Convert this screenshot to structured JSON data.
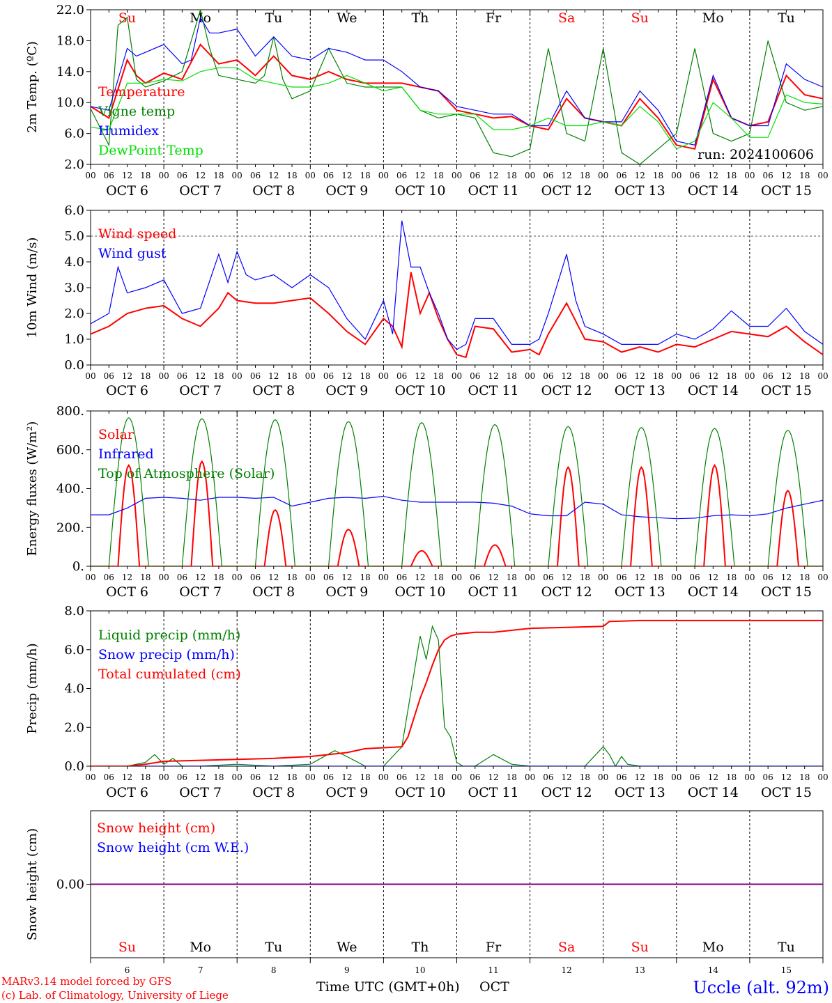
{
  "run_label": "run: 2024100606",
  "footer": {
    "model": "MARv3.14 model forced by GFS",
    "credit": "(c) Lab. of Climatology, University of Liege",
    "axis_title": "Time UTC (GMT+0h)",
    "month": "OCT",
    "station": "Uccle (alt. 92m)"
  },
  "days": [
    {
      "dow": "Su",
      "date": "OCT  6",
      "num": "6",
      "weekend": true
    },
    {
      "dow": "Mo",
      "date": "OCT  7",
      "num": "7",
      "weekend": false
    },
    {
      "dow": "Tu",
      "date": "OCT  8",
      "num": "8",
      "weekend": false
    },
    {
      "dow": "We",
      "date": "OCT  9",
      "num": "9",
      "weekend": false
    },
    {
      "dow": "Th",
      "date": "OCT 10",
      "num": "10",
      "weekend": false
    },
    {
      "dow": "Fr",
      "date": "OCT 11",
      "num": "11",
      "weekend": false
    },
    {
      "dow": "Sa",
      "date": "OCT 12",
      "num": "12",
      "weekend": true
    },
    {
      "dow": "Su",
      "date": "OCT 13",
      "num": "13",
      "weekend": true
    },
    {
      "dow": "Mo",
      "date": "OCT 14",
      "num": "14",
      "weekend": false
    },
    {
      "dow": "Tu",
      "date": "OCT 15",
      "num": "15",
      "weekend": false
    }
  ],
  "hour_ticks": [
    "00",
    "06",
    "12",
    "18"
  ],
  "colors": {
    "red": "#ff0000",
    "green": "#008000",
    "blue": "#0000ff",
    "lightgreen": "#00e000",
    "purple": "#800080",
    "weekend": "#ff0000",
    "weekday": "#000000"
  },
  "chart_data": [
    {
      "type": "line",
      "ylabel": "2m Temp. (ºC)",
      "ylim": [
        2,
        22
      ],
      "yticks": [
        "2.0",
        "6.0",
        "10.0",
        "14.0",
        "18.0",
        "22.0"
      ],
      "x_unit": "hours since Oct 6 00 UTC",
      "series": [
        {
          "name": "Temperature",
          "color": "red",
          "x": [
            0,
            6,
            12,
            15,
            18,
            24,
            30,
            36,
            42,
            48,
            54,
            60,
            66,
            72,
            78,
            84,
            90,
            96,
            102,
            108,
            114,
            120,
            126,
            132,
            138,
            144,
            150,
            156,
            162,
            168,
            174,
            180,
            186,
            192,
            198,
            204,
            210,
            216,
            222,
            228,
            234,
            240
          ],
          "y": [
            9.5,
            8.0,
            15.5,
            13.5,
            12.5,
            13.8,
            13.0,
            17.5,
            15.0,
            15.5,
            13.5,
            16.0,
            13.5,
            13.0,
            14.0,
            13.0,
            12.5,
            12.5,
            12.5,
            12.0,
            11.5,
            9.0,
            8.5,
            8.0,
            8.2,
            7.0,
            6.5,
            10.5,
            8.0,
            7.5,
            7.0,
            10.5,
            8.0,
            4.5,
            4.0,
            13.0,
            8.0,
            7.0,
            7.5,
            13.5,
            11.0,
            10.5
          ]
        },
        {
          "name": "Vigne temp",
          "color": "green",
          "x": [
            0,
            6,
            9,
            12,
            15,
            18,
            24,
            30,
            36,
            39,
            42,
            48,
            54,
            57,
            60,
            63,
            66,
            72,
            78,
            84,
            90,
            96,
            102,
            108,
            114,
            120,
            126,
            132,
            138,
            144,
            150,
            156,
            162,
            168,
            174,
            180,
            186,
            192,
            198,
            204,
            210,
            216,
            222,
            228,
            234,
            240
          ],
          "y": [
            9.2,
            4.5,
            20.0,
            21.0,
            13.0,
            12.0,
            12.8,
            14.0,
            22.0,
            17.0,
            13.5,
            13.0,
            12.5,
            13.5,
            18.5,
            13.0,
            10.5,
            11.5,
            17.0,
            12.5,
            12.0,
            12.0,
            12.0,
            9.0,
            8.0,
            8.5,
            8.0,
            3.5,
            3.0,
            4.0,
            17.0,
            6.0,
            5.0,
            17.0,
            3.5,
            2.0,
            4.0,
            6.0,
            17.0,
            6.0,
            5.0,
            6.0,
            18.0,
            10.0,
            9.0,
            9.5
          ]
        },
        {
          "name": "Humidex",
          "color": "blue",
          "x": [
            0,
            6,
            12,
            15,
            18,
            24,
            30,
            33,
            36,
            39,
            42,
            48,
            54,
            60,
            66,
            72,
            78,
            84,
            90,
            96,
            102,
            108,
            114,
            120,
            126,
            132,
            138,
            144,
            150,
            156,
            162,
            168,
            174,
            180,
            186,
            192,
            198,
            204,
            210,
            216,
            222,
            228,
            234,
            240
          ],
          "y": [
            9.5,
            9.0,
            17.0,
            16.0,
            16.5,
            17.5,
            15.0,
            15.5,
            21.0,
            19.0,
            19.0,
            19.5,
            16.0,
            18.5,
            16.0,
            15.5,
            17.0,
            16.5,
            15.5,
            15.5,
            14.0,
            12.0,
            11.5,
            9.5,
            9.0,
            8.5,
            8.5,
            7.0,
            7.0,
            11.5,
            8.0,
            7.5,
            7.5,
            11.5,
            9.0,
            5.0,
            4.5,
            13.5,
            8.0,
            7.0,
            7.0,
            15.0,
            13.0,
            12.0
          ]
        },
        {
          "name": "DewPoint Temp",
          "color": "lightgreen",
          "x": [
            0,
            6,
            12,
            18,
            24,
            30,
            36,
            42,
            48,
            54,
            60,
            66,
            72,
            78,
            84,
            90,
            96,
            102,
            108,
            114,
            120,
            126,
            132,
            138,
            144,
            150,
            156,
            162,
            168,
            174,
            180,
            186,
            192,
            198,
            204,
            210,
            216,
            222,
            228,
            234,
            240
          ],
          "y": [
            6.8,
            6.5,
            12.5,
            12.5,
            13.0,
            12.8,
            14.0,
            14.5,
            14.5,
            13.0,
            12.5,
            12.0,
            12.0,
            12.5,
            13.5,
            12.5,
            11.5,
            12.0,
            9.0,
            8.5,
            8.5,
            8.5,
            6.5,
            6.5,
            7.0,
            8.0,
            7.0,
            7.0,
            7.5,
            7.0,
            9.5,
            7.5,
            4.0,
            5.0,
            10.0,
            8.0,
            5.5,
            5.5,
            11.0,
            10.0,
            9.8
          ]
        }
      ]
    },
    {
      "type": "line",
      "ylabel": "10m Wind (m/s)",
      "ylim": [
        0,
        6
      ],
      "yticks": [
        "0.0",
        "1.0",
        "2.0",
        "3.0",
        "4.0",
        "5.0",
        "6.0"
      ],
      "reference_line": 5.0,
      "series": [
        {
          "name": "Wind speed",
          "color": "red",
          "x": [
            0,
            6,
            12,
            18,
            24,
            30,
            36,
            42,
            45,
            48,
            54,
            60,
            66,
            72,
            78,
            84,
            90,
            96,
            99,
            102,
            105,
            108,
            111,
            114,
            117,
            120,
            123,
            126,
            132,
            138,
            144,
            147,
            150,
            156,
            162,
            168,
            174,
            180,
            186,
            192,
            198,
            204,
            210,
            216,
            222,
            228,
            234,
            240
          ],
          "y": [
            1.2,
            1.5,
            2.0,
            2.2,
            2.3,
            1.8,
            1.5,
            2.2,
            2.8,
            2.5,
            2.4,
            2.4,
            2.5,
            2.6,
            2.0,
            1.3,
            0.8,
            1.8,
            1.5,
            0.7,
            3.6,
            2.0,
            2.8,
            1.8,
            1.0,
            0.4,
            0.3,
            1.5,
            1.4,
            0.5,
            0.6,
            0.4,
            1.2,
            2.4,
            1.0,
            0.9,
            0.5,
            0.7,
            0.5,
            0.8,
            0.7,
            1.0,
            1.3,
            1.2,
            1.1,
            1.5,
            0.9,
            0.4
          ]
        },
        {
          "name": "Wind gust",
          "color": "blue",
          "x": [
            0,
            6,
            9,
            12,
            18,
            24,
            30,
            36,
            42,
            45,
            48,
            51,
            54,
            60,
            66,
            72,
            78,
            84,
            90,
            96,
            99,
            102,
            105,
            108,
            111,
            114,
            117,
            120,
            123,
            126,
            132,
            138,
            144,
            147,
            150,
            156,
            159,
            162,
            168,
            174,
            180,
            186,
            192,
            198,
            204,
            210,
            216,
            222,
            228,
            234,
            240
          ],
          "y": [
            1.6,
            2.0,
            3.8,
            2.8,
            3.0,
            3.3,
            2.0,
            2.2,
            4.3,
            3.2,
            4.4,
            3.5,
            3.3,
            3.5,
            3.0,
            3.5,
            3.0,
            1.8,
            1.0,
            2.5,
            1.2,
            5.6,
            3.8,
            3.8,
            2.8,
            2.0,
            1.0,
            0.6,
            0.8,
            1.8,
            1.8,
            0.8,
            0.8,
            1.0,
            2.0,
            4.3,
            2.5,
            1.5,
            1.2,
            0.8,
            0.8,
            0.8,
            1.2,
            1.0,
            1.4,
            2.1,
            1.5,
            1.5,
            2.2,
            1.3,
            0.8
          ]
        }
      ]
    },
    {
      "type": "line",
      "ylabel": "Energy fluxes (W/m²)",
      "ylim": [
        0,
        800
      ],
      "yticks": [
        "0.",
        "200.",
        "400.",
        "600.",
        "800."
      ],
      "series": [
        {
          "name": "Solar",
          "color": "red",
          "peaks": [
            520,
            540,
            290,
            190,
            80,
            110,
            510,
            510,
            520,
            390
          ]
        },
        {
          "name": "Infrared",
          "color": "blue",
          "x": [
            0,
            6,
            12,
            18,
            24,
            30,
            36,
            42,
            48,
            54,
            60,
            66,
            72,
            78,
            84,
            90,
            96,
            102,
            108,
            114,
            120,
            126,
            132,
            138,
            144,
            150,
            156,
            162,
            168,
            174,
            180,
            186,
            192,
            198,
            204,
            210,
            216,
            222,
            228,
            234,
            240
          ],
          "y": [
            265,
            265,
            300,
            350,
            355,
            350,
            340,
            355,
            355,
            350,
            355,
            310,
            330,
            350,
            355,
            350,
            360,
            340,
            330,
            330,
            330,
            330,
            325,
            310,
            270,
            260,
            260,
            330,
            320,
            265,
            255,
            250,
            245,
            248,
            260,
            265,
            260,
            270,
            300,
            320,
            340
          ]
        },
        {
          "name": "Top of Atmosphere (Solar)",
          "color": "green",
          "peaks": [
            765,
            760,
            755,
            745,
            740,
            730,
            720,
            715,
            710,
            700
          ]
        }
      ]
    },
    {
      "type": "line",
      "ylabel": "Precip (mm/h)",
      "ylim": [
        0,
        8
      ],
      "yticks": [
        "0.0",
        "2.0",
        "4.0",
        "6.0",
        "8.0"
      ],
      "series": [
        {
          "name": "Liquid precip (mm/h)",
          "color": "green",
          "x": [
            0,
            12,
            18,
            21,
            24,
            27,
            30,
            36,
            48,
            60,
            72,
            80,
            84,
            90,
            96,
            102,
            108,
            110,
            112,
            114,
            116,
            118,
            120,
            122,
            126,
            132,
            138,
            144,
            156,
            162,
            168,
            170,
            172,
            174,
            176,
            180,
            240
          ],
          "y": [
            0,
            0,
            0.2,
            0.6,
            0.1,
            0.4,
            0,
            0,
            0.1,
            0,
            0.1,
            0.8,
            0.5,
            0,
            0,
            1.0,
            6.7,
            5.5,
            7.2,
            6.5,
            2.0,
            1.5,
            0.2,
            0,
            0,
            0.6,
            0.1,
            0,
            0,
            0,
            1.0,
            0.6,
            0,
            0.5,
            0.1,
            0,
            0
          ]
        },
        {
          "name": "Snow precip (mm/h)",
          "color": "blue",
          "x": [
            0,
            240
          ],
          "y": [
            0,
            0
          ]
        },
        {
          "name": "Total cumulated (cm)",
          "color": "red",
          "x": [
            0,
            12,
            18,
            24,
            36,
            48,
            60,
            72,
            84,
            90,
            96,
            102,
            104,
            106,
            108,
            110,
            112,
            114,
            116,
            118,
            120,
            126,
            132,
            144,
            156,
            168,
            170,
            180,
            200,
            220,
            240
          ],
          "y": [
            0,
            0,
            0.1,
            0.25,
            0.3,
            0.35,
            0.4,
            0.5,
            0.7,
            0.9,
            0.95,
            1.0,
            1.5,
            2.5,
            3.5,
            4.3,
            5.2,
            6.0,
            6.5,
            6.7,
            6.8,
            6.9,
            6.9,
            7.1,
            7.15,
            7.2,
            7.45,
            7.5,
            7.5,
            7.5,
            7.5
          ]
        }
      ]
    },
    {
      "type": "line",
      "ylabel": "Snow height (cm)",
      "yticks": [
        "0.00"
      ],
      "series": [
        {
          "name": "Snow height (cm)",
          "color": "red",
          "x": [
            0,
            240
          ],
          "y": [
            0,
            0
          ]
        },
        {
          "name": "Snow height (cm W.E.)",
          "color": "blue",
          "x": [
            0,
            240
          ],
          "y": [
            0,
            0
          ]
        }
      ]
    }
  ]
}
